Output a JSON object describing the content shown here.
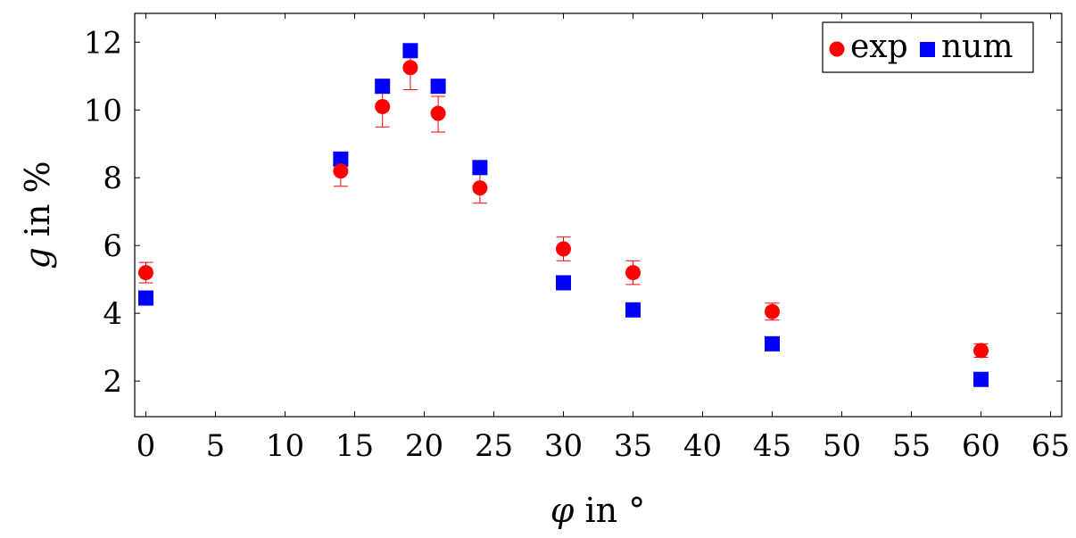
{
  "chart_data": {
    "type": "scatter",
    "xlabel_symbol": "φ",
    "xlabel_rest": " in °",
    "ylabel_symbol": "g",
    "ylabel_rest": " in %",
    "xlim": [
      -0.8,
      65.8
    ],
    "ylim": [
      0.95,
      12.85
    ],
    "xticks": [
      0,
      5,
      10,
      15,
      20,
      25,
      30,
      35,
      40,
      45,
      50,
      55,
      60,
      65
    ],
    "yticks": [
      2,
      4,
      6,
      8,
      10,
      12
    ],
    "grid": false,
    "legend_position": "top-right",
    "series": [
      {
        "name": "exp",
        "marker": "circle",
        "color": "#ff0000",
        "x": [
          0,
          14,
          17,
          19,
          21,
          24,
          30,
          35,
          45,
          60
        ],
        "y": [
          5.2,
          8.2,
          10.1,
          11.25,
          9.9,
          7.7,
          5.9,
          5.2,
          4.05,
          2.9
        ],
        "error_low": [
          0.3,
          0.45,
          0.6,
          0.65,
          0.55,
          0.45,
          0.35,
          0.35,
          0.25,
          0.2
        ],
        "error_high": [
          0.3,
          0.4,
          0.5,
          0.5,
          0.5,
          0.4,
          0.35,
          0.35,
          0.25,
          0.2
        ]
      },
      {
        "name": "num",
        "marker": "square",
        "color": "#0000ff",
        "x": [
          0,
          14,
          17,
          19,
          21,
          24,
          30,
          35,
          45,
          60
        ],
        "y": [
          4.45,
          8.55,
          10.7,
          11.75,
          10.7,
          8.3,
          4.9,
          4.1,
          3.1,
          2.05
        ]
      }
    ]
  }
}
